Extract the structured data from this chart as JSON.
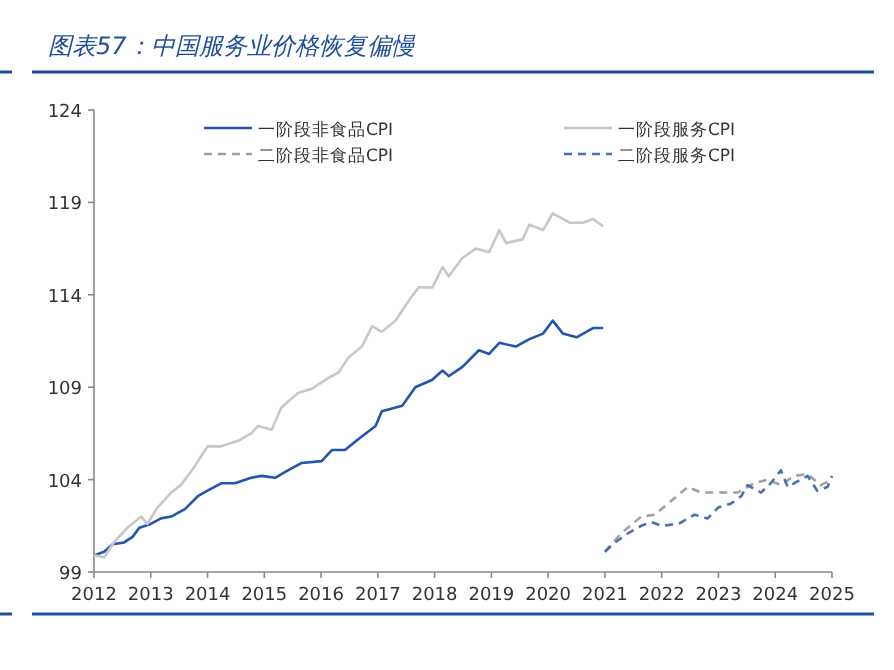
{
  "chart_data": {
    "type": "line",
    "title": "图表57：中国服务业价格恢复偏慢",
    "xlim": [
      2012,
      2025
    ],
    "xticks": [
      2012,
      2013,
      2014,
      2015,
      2016,
      2017,
      2018,
      2019,
      2020,
      2021,
      2022,
      2023,
      2024,
      2025
    ],
    "ylim": [
      99,
      124
    ],
    "yticks": [
      99,
      104,
      109,
      114,
      119,
      124
    ],
    "grid": false,
    "legend": "top",
    "series": [
      {
        "name": "一阶段非食品CPI",
        "color": "#2354b0",
        "line_style": "solid",
        "x": [
          2012.0,
          2012.18,
          2012.33,
          2012.53,
          2012.68,
          2012.8,
          2013.0,
          2013.18,
          2013.36,
          2013.6,
          2013.83,
          2014.0,
          2014.24,
          2014.48,
          2014.77,
          2014.95,
          2015.19,
          2015.36,
          2015.66,
          2016.01,
          2016.19,
          2016.42,
          2016.66,
          2016.96,
          2017.07,
          2017.43,
          2017.66,
          2017.96,
          2018.14,
          2018.25,
          2018.49,
          2018.78,
          2018.96,
          2019.14,
          2019.43,
          2019.67,
          2019.91,
          2020.08,
          2020.26,
          2020.5,
          2020.79,
          2020.97
        ],
        "values": [
          99.9,
          100.1,
          100.5,
          100.6,
          100.9,
          101.4,
          101.6,
          101.9,
          102.0,
          102.4,
          103.1,
          103.4,
          103.8,
          103.8,
          104.1,
          104.2,
          104.1,
          104.4,
          104.9,
          105.0,
          105.6,
          105.6,
          106.2,
          106.9,
          107.7,
          108.0,
          109.0,
          109.4,
          109.9,
          109.6,
          110.1,
          111.0,
          110.8,
          111.4,
          111.2,
          111.6,
          111.9,
          112.6,
          111.9,
          111.7,
          112.2,
          112.2
        ]
      },
      {
        "name": "一阶段服务CPI",
        "color": "#c8c8c8",
        "line_style": "solid",
        "x": [
          2012.0,
          2012.18,
          2012.35,
          2012.59,
          2012.83,
          2012.94,
          2013.12,
          2013.36,
          2013.53,
          2013.77,
          2014.0,
          2014.24,
          2014.54,
          2014.77,
          2014.89,
          2015.13,
          2015.3,
          2015.6,
          2015.83,
          2016.13,
          2016.31,
          2016.48,
          2016.72,
          2016.9,
          2017.07,
          2017.31,
          2017.55,
          2017.72,
          2017.96,
          2018.14,
          2018.25,
          2018.49,
          2018.73,
          2018.96,
          2019.14,
          2019.26,
          2019.55,
          2019.67,
          2019.91,
          2020.08,
          2020.38,
          2020.61,
          2020.79,
          2020.97
        ],
        "values": [
          99.9,
          99.8,
          100.6,
          101.4,
          102.0,
          101.6,
          102.5,
          103.3,
          103.7,
          104.7,
          105.8,
          105.8,
          106.1,
          106.5,
          106.9,
          106.7,
          107.9,
          108.7,
          108.9,
          109.5,
          109.8,
          110.6,
          111.2,
          112.3,
          112.0,
          112.6,
          113.7,
          114.4,
          114.4,
          115.5,
          115.0,
          116.0,
          116.5,
          116.3,
          117.5,
          116.8,
          117.0,
          117.8,
          117.5,
          118.4,
          117.9,
          117.9,
          118.1,
          117.7
        ]
      },
      {
        "name": "二阶段非食品CPI",
        "color": "#a0a0a0",
        "line_style": "dashed",
        "x": [
          2021.0,
          2021.29,
          2021.64,
          2021.88,
          2022.11,
          2022.46,
          2022.7,
          2023.05,
          2023.34,
          2023.63,
          2023.87,
          2024.1,
          2024.33,
          2024.57,
          2024.8,
          2025.0
        ],
        "values": [
          100.1,
          101.1,
          102.0,
          102.1,
          102.7,
          103.6,
          103.3,
          103.3,
          103.3,
          103.8,
          104.0,
          103.7,
          104.2,
          104.3,
          103.7,
          104.0
        ]
      },
      {
        "name": "二阶段服务CPI",
        "color": "#4a6fb5",
        "line_style": "dashed",
        "x": [
          2021.0,
          2021.18,
          2021.41,
          2021.64,
          2021.82,
          2022.0,
          2022.29,
          2022.58,
          2022.81,
          2023.0,
          2023.22,
          2023.4,
          2023.51,
          2023.75,
          2023.92,
          2024.1,
          2024.22,
          2024.39,
          2024.57,
          2024.74,
          2024.92,
          2025.0
        ],
        "values": [
          100.1,
          100.6,
          101.1,
          101.5,
          101.7,
          101.5,
          101.6,
          102.1,
          101.9,
          102.5,
          102.7,
          103.1,
          103.7,
          103.3,
          103.8,
          104.5,
          103.6,
          103.9,
          104.2,
          103.4,
          103.6,
          104.2
        ]
      }
    ]
  }
}
